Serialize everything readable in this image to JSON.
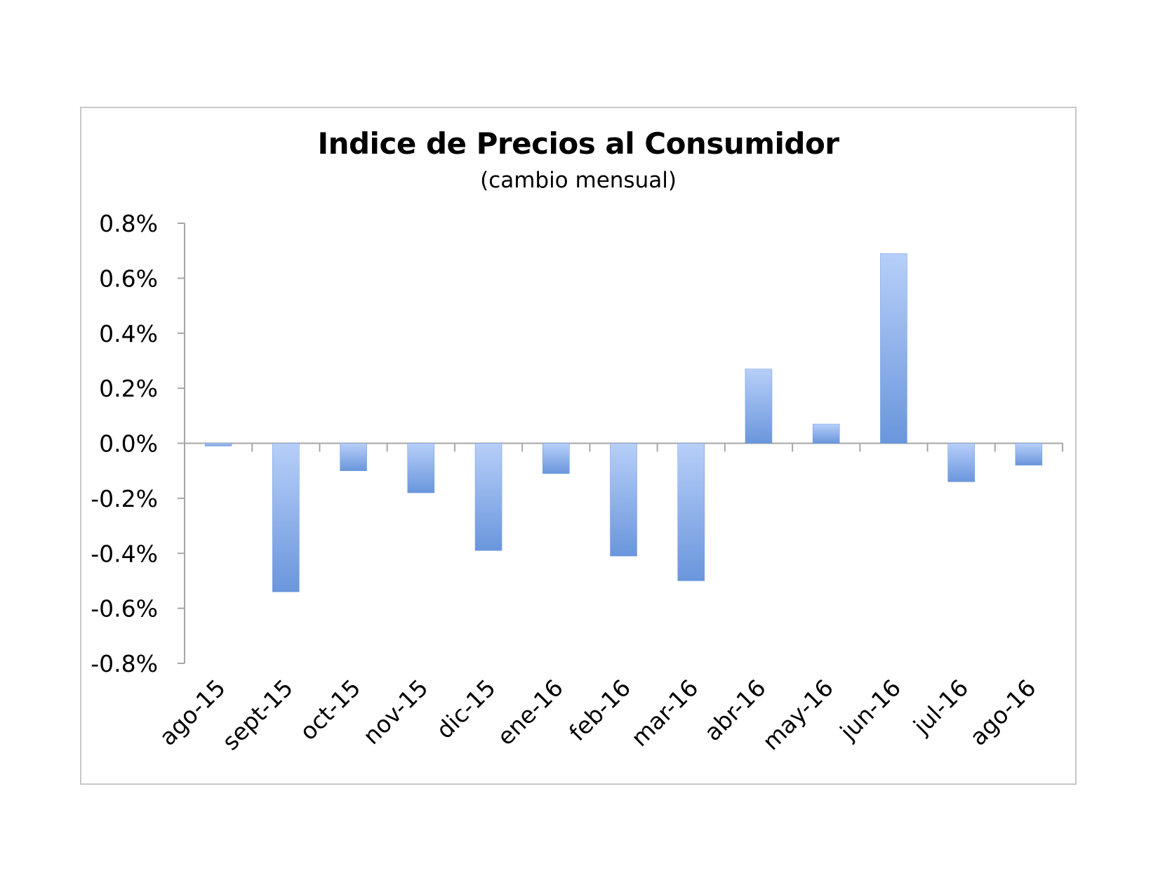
{
  "chart_data": {
    "type": "bar",
    "title": "Indice de Precios al Consumidor",
    "subtitle": "(cambio mensual)",
    "categories": [
      "ago-15",
      "sept-15",
      "oct-15",
      "nov-15",
      "dic-15",
      "ene-16",
      "feb-16",
      "mar-16",
      "abr-16",
      "may-16",
      "jun-16",
      "jul-16",
      "ago-16"
    ],
    "values": [
      -0.01,
      -0.54,
      -0.1,
      -0.18,
      -0.39,
      -0.11,
      -0.41,
      -0.5,
      0.27,
      0.07,
      0.69,
      -0.14,
      -0.08
    ],
    "ylim": [
      -0.8,
      0.8
    ],
    "yticks": [
      0.8,
      0.6,
      0.4,
      0.2,
      0.0,
      -0.2,
      -0.4,
      -0.6,
      -0.8
    ],
    "ytick_labels": [
      "0.8%",
      "0.6%",
      "0.4%",
      "0.2%",
      "0.0%",
      "-0.2%",
      "-0.4%",
      "-0.6%",
      "-0.8%"
    ],
    "xlabel": "",
    "ylabel": "",
    "grid": false,
    "legend": "none",
    "bar_color_light": "#b7cff9",
    "bar_color_dark": "#6a96dc"
  }
}
